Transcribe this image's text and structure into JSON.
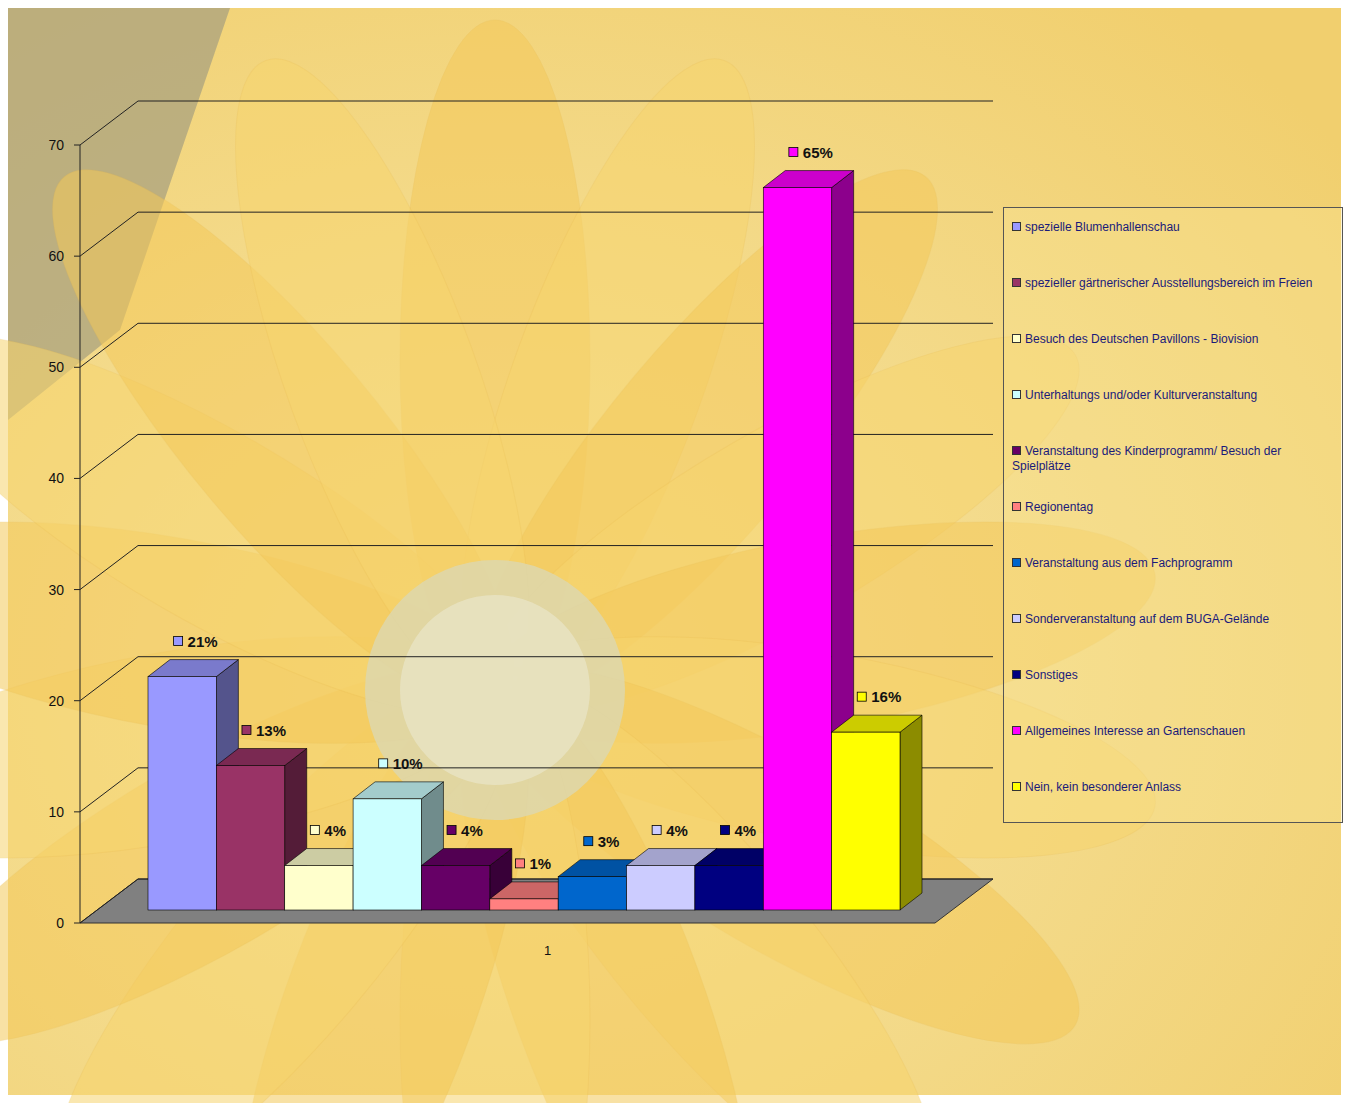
{
  "chart_data": {
    "type": "bar",
    "categories": [
      "1"
    ],
    "series": [
      {
        "name": "spezielle Blumenhallenschau",
        "color": "#9999ff",
        "values": [
          21
        ],
        "value_labels": [
          "21%"
        ]
      },
      {
        "name": "spezieller gärtnerischer Ausstellungsbereich im Freien",
        "color": "#993366",
        "values": [
          13
        ],
        "value_labels": [
          "13%"
        ]
      },
      {
        "name": "Besuch des Deutschen Pavillons - Biovision",
        "color": "#ffffcc",
        "values": [
          4
        ],
        "value_labels": [
          "4%"
        ]
      },
      {
        "name": "Unterhaltungs und/oder Kulturveranstaltung",
        "color": "#ccffff",
        "values": [
          10
        ],
        "value_labels": [
          "10%"
        ]
      },
      {
        "name": "Veranstaltung des Kinderprogramm/ Besuch der Spielplätze",
        "color": "#660066",
        "values": [
          4
        ],
        "value_labels": [
          "4%"
        ]
      },
      {
        "name": "Regionentag",
        "color": "#ff8080",
        "values": [
          1
        ],
        "value_labels": [
          "1%"
        ]
      },
      {
        "name": "Veranstaltung aus dem Fachprogramm",
        "color": "#0066cc",
        "values": [
          3
        ],
        "value_labels": [
          "3%"
        ]
      },
      {
        "name": "Sonderveranstaltung auf dem BUGA-Gelände",
        "color": "#ccccff",
        "values": [
          4
        ],
        "value_labels": [
          "4%"
        ]
      },
      {
        "name": "Sonstiges",
        "color": "#000080",
        "values": [
          4
        ],
        "value_labels": [
          "4%"
        ]
      },
      {
        "name": "Allgemeines Interesse an Gartenschauen",
        "color": "#ff00ff",
        "values": [
          65
        ],
        "value_labels": [
          "65%"
        ]
      },
      {
        "name": "Nein, kein besonderer Anlass",
        "color": "#ffff00",
        "values": [
          16
        ],
        "value_labels": [
          "16%"
        ]
      }
    ],
    "ylim": [
      0,
      70
    ],
    "yticks": [
      0,
      10,
      20,
      30,
      40,
      50,
      60,
      70
    ],
    "grid": true,
    "legend": "right",
    "data_labels": true
  }
}
